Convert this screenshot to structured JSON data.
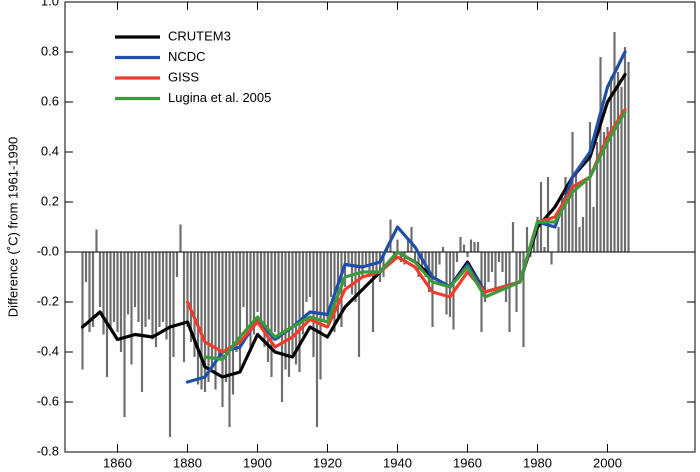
{
  "chart_data": [
    {
      "type": "bar",
      "ylabel": "Difference (˚C) from 1961-1990",
      "color": "#6e6e6e",
      "xlim": [
        1845,
        2025
      ],
      "xticks": [
        1860,
        1880,
        1900,
        1920,
        1940,
        1960,
        1980,
        2000
      ],
      "ylim": [
        -0.8,
        1.0
      ],
      "yticks": [
        {
          "value": 1.0,
          "label": "1.0"
        },
        0.8,
        0.6,
        0.4,
        0.2,
        {
          "value": 0,
          "label": "-0.0"
        },
        -0.2,
        -0.4,
        -0.6,
        -0.8
      ],
      "x": [
        1850,
        1851,
        1852,
        1853,
        1854,
        1855,
        1856,
        1857,
        1858,
        1859,
        1860,
        1861,
        1862,
        1863,
        1864,
        1865,
        1866,
        1867,
        1868,
        1869,
        1870,
        1871,
        1872,
        1873,
        1874,
        1875,
        1876,
        1877,
        1878,
        1879,
        1880,
        1881,
        1882,
        1883,
        1884,
        1885,
        1886,
        1887,
        1888,
        1889,
        1890,
        1891,
        1892,
        1893,
        1894,
        1895,
        1896,
        1897,
        1898,
        1899,
        1900,
        1901,
        1902,
        1903,
        1904,
        1905,
        1906,
        1907,
        1908,
        1909,
        1910,
        1911,
        1912,
        1913,
        1914,
        1915,
        1916,
        1917,
        1918,
        1919,
        1920,
        1921,
        1922,
        1923,
        1924,
        1925,
        1926,
        1927,
        1928,
        1929,
        1930,
        1931,
        1932,
        1933,
        1934,
        1935,
        1936,
        1937,
        1938,
        1939,
        1940,
        1941,
        1942,
        1943,
        1944,
        1945,
        1946,
        1947,
        1948,
        1949,
        1950,
        1951,
        1952,
        1953,
        1954,
        1955,
        1956,
        1957,
        1958,
        1959,
        1960,
        1961,
        1962,
        1963,
        1964,
        1965,
        1966,
        1967,
        1968,
        1969,
        1970,
        1971,
        1972,
        1973,
        1974,
        1975,
        1976,
        1977,
        1978,
        1979,
        1980,
        1981,
        1982,
        1983,
        1984,
        1985,
        1986,
        1987,
        1988,
        1989,
        1990,
        1991,
        1992,
        1993,
        1994,
        1995,
        1996,
        1997,
        1998,
        1999,
        2000,
        2001,
        2002,
        2003,
        2004,
        2005,
        2006
      ],
      "values": [
        -0.47,
        -0.12,
        -0.32,
        -0.3,
        0.09,
        -0.22,
        -0.33,
        -0.5,
        -0.31,
        -0.28,
        -0.32,
        -0.4,
        -0.66,
        -0.25,
        -0.45,
        -0.22,
        -0.28,
        -0.56,
        -0.3,
        -0.27,
        -0.35,
        -0.38,
        -0.3,
        -0.28,
        -0.35,
        -0.74,
        -0.42,
        -0.1,
        0.11,
        -0.44,
        -0.3,
        -0.36,
        -0.42,
        -0.53,
        -0.55,
        -0.56,
        -0.52,
        -0.46,
        -0.55,
        -0.43,
        -0.62,
        -0.52,
        -0.7,
        -0.57,
        -0.4,
        -0.48,
        -0.22,
        -0.34,
        -0.4,
        -0.33,
        -0.24,
        -0.3,
        -0.38,
        -0.44,
        -0.5,
        -0.32,
        -0.35,
        -0.6,
        -0.47,
        -0.5,
        -0.41,
        -0.45,
        -0.48,
        -0.33,
        -0.2,
        -0.18,
        -0.42,
        -0.7,
        -0.51,
        -0.28,
        -0.27,
        -0.18,
        -0.32,
        -0.26,
        -0.3,
        -0.14,
        -0.05,
        -0.17,
        -0.2,
        -0.42,
        -0.1,
        -0.06,
        -0.1,
        -0.32,
        -0.1,
        -0.12,
        -0.1,
        0.02,
        0.13,
        -0.02,
        0.05,
        -0.04,
        -0.05,
        0.05,
        0.1,
        -0.04,
        -0.1,
        -0.08,
        -0.1,
        -0.16,
        -0.3,
        -0.1,
        -0.05,
        0.02,
        -0.25,
        -0.26,
        -0.31,
        -0.04,
        0.06,
        0.03,
        -0.02,
        0.05,
        0.04,
        0.04,
        -0.32,
        -0.2,
        -0.12,
        -0.08,
        -0.16,
        -0.04,
        -0.08,
        -0.2,
        -0.32,
        0.12,
        -0.24,
        -0.12,
        -0.38,
        0.1,
        -0.02,
        0.06,
        0.14,
        0.28,
        0.02,
        0.3,
        -0.05,
        0.0,
        0.1,
        0.22,
        0.3,
        0.25,
        0.48,
        0.32,
        0.1,
        0.14,
        0.28,
        0.52,
        0.18,
        0.44,
        0.78,
        0.48,
        0.5,
        0.7,
        0.88,
        0.72,
        0.66,
        0.82,
        0.76
      ]
    },
    {
      "type": "line",
      "x": [
        1850,
        1855,
        1860,
        1865,
        1870,
        1875,
        1880,
        1885,
        1890,
        1895,
        1900,
        1905,
        1910,
        1915,
        1920,
        1925,
        1930,
        1935,
        1940,
        1945,
        1950,
        1955,
        1960,
        1965,
        1970,
        1975,
        1980,
        1985,
        1990,
        1995,
        2000,
        2005
      ],
      "series": [
        {
          "name": "CRUTEM3",
          "color": "#000000",
          "values": [
            -0.3,
            -0.24,
            -0.35,
            -0.33,
            -0.34,
            -0.3,
            -0.28,
            -0.46,
            -0.5,
            -0.48,
            -0.33,
            -0.4,
            -0.42,
            -0.3,
            -0.34,
            -0.22,
            -0.15,
            -0.08,
            0.0,
            -0.04,
            -0.1,
            -0.14,
            -0.04,
            -0.16,
            -0.14,
            -0.12,
            0.1,
            0.18,
            0.3,
            0.38,
            0.6,
            0.71
          ]
        },
        {
          "name": "NCDC",
          "color": "#1f4fa8",
          "values": [
            null,
            null,
            null,
            null,
            null,
            null,
            -0.52,
            -0.5,
            -0.4,
            -0.38,
            -0.27,
            -0.35,
            -0.3,
            -0.24,
            -0.25,
            -0.05,
            -0.06,
            -0.04,
            0.1,
            0.02,
            -0.1,
            -0.14,
            -0.05,
            -0.16,
            -0.14,
            -0.12,
            0.12,
            0.1,
            0.3,
            0.4,
            0.66,
            0.8
          ]
        },
        {
          "name": "GISS",
          "color": "#f03c2c",
          "values": [
            null,
            null,
            null,
            null,
            null,
            null,
            -0.2,
            -0.36,
            -0.4,
            -0.36,
            -0.28,
            -0.38,
            -0.34,
            -0.27,
            -0.3,
            -0.15,
            -0.1,
            -0.08,
            -0.02,
            -0.06,
            -0.16,
            -0.18,
            -0.08,
            -0.16,
            -0.14,
            -0.12,
            0.12,
            0.14,
            0.26,
            0.3,
            0.46,
            0.57
          ]
        },
        {
          "name": "Lugina et al. 2005",
          "color": "#3c9a3c",
          "values": [
            null,
            null,
            null,
            null,
            null,
            null,
            null,
            -0.42,
            -0.43,
            -0.34,
            -0.26,
            -0.34,
            -0.3,
            -0.26,
            -0.28,
            -0.1,
            -0.08,
            -0.08,
            0.0,
            -0.04,
            -0.12,
            -0.14,
            -0.06,
            -0.18,
            -0.15,
            -0.12,
            0.12,
            0.12,
            0.24,
            0.3,
            0.44,
            0.56
          ]
        }
      ]
    }
  ]
}
